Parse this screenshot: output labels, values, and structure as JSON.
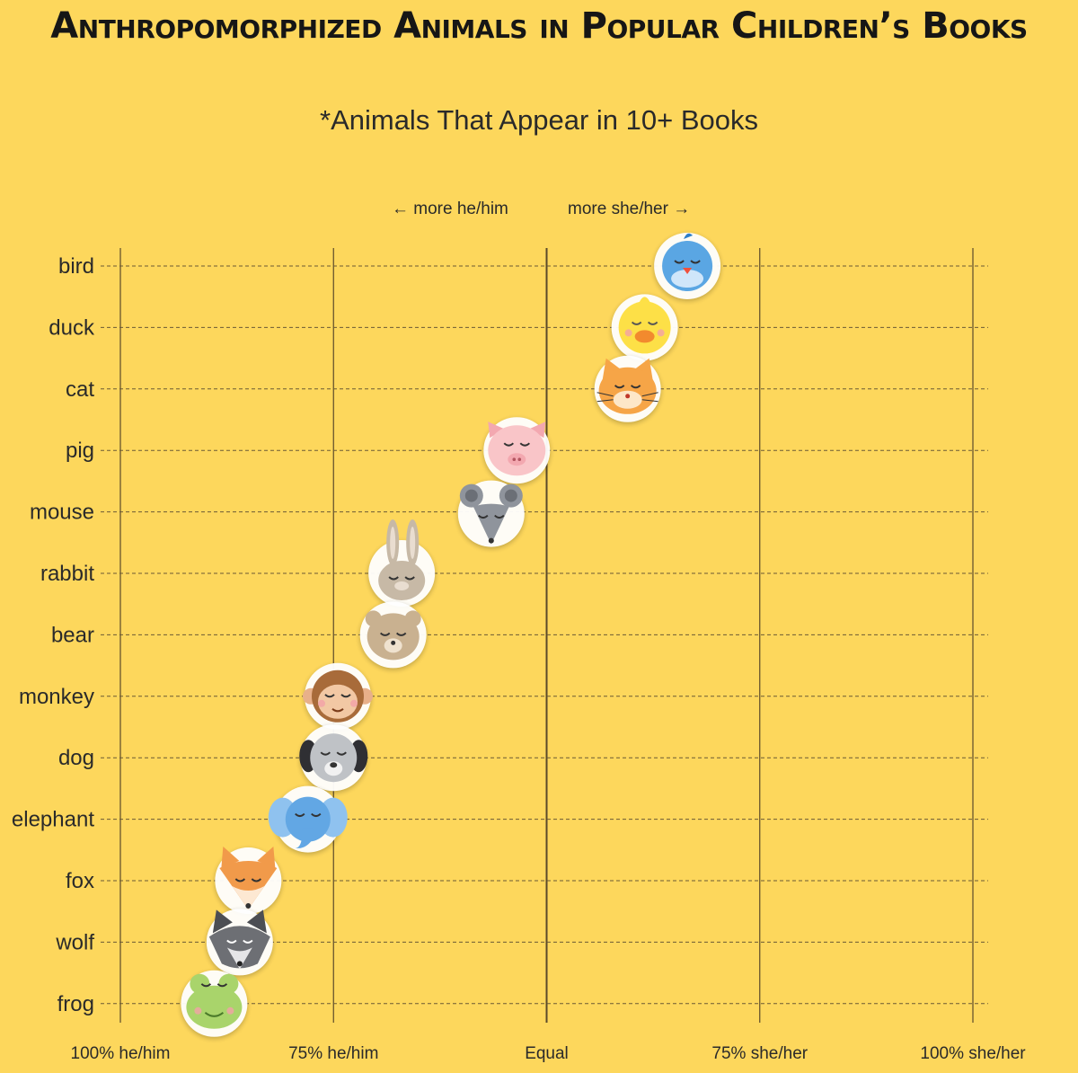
{
  "title": "Anthropomorphized Animals in Popular Children’s Books",
  "subtitle": "*Animals That Appear in 10+ Books",
  "direction_labels": {
    "left": "← more he/him",
    "right": "more she/her →"
  },
  "chart_data": {
    "type": "scatter",
    "title": "Anthropomorphized Animals in Popular Children’s Books",
    "subtitle": "*Animals That Appear in 10+ Books",
    "x_ticks": [
      {
        "value": -100,
        "label": "100% he/him"
      },
      {
        "value": -50,
        "label": "75% he/him"
      },
      {
        "value": 0,
        "label": "Equal"
      },
      {
        "value": 50,
        "label": "75% she/her"
      },
      {
        "value": 100,
        "label": "100% she/her"
      }
    ],
    "xlim": [
      -100,
      100
    ],
    "x_unit": "difference in pronoun share (she/her minus he/him), percentage points",
    "grid": true,
    "points": [
      {
        "animal": "bird",
        "x": 33
      },
      {
        "animal": "duck",
        "x": 23
      },
      {
        "animal": "cat",
        "x": 19
      },
      {
        "animal": "pig",
        "x": -7
      },
      {
        "animal": "mouse",
        "x": -13
      },
      {
        "animal": "rabbit",
        "x": -34
      },
      {
        "animal": "bear",
        "x": -36
      },
      {
        "animal": "monkey",
        "x": -49
      },
      {
        "animal": "dog",
        "x": -50
      },
      {
        "animal": "elephant",
        "x": -56
      },
      {
        "animal": "fox",
        "x": -70
      },
      {
        "animal": "wolf",
        "x": -72
      },
      {
        "animal": "frog",
        "x": -78
      }
    ]
  },
  "icons": {
    "bird": {
      "name": "bird-face-icon",
      "color": "#5aa6e3"
    },
    "duck": {
      "name": "duck-face-icon",
      "color": "#fde047"
    },
    "cat": {
      "name": "cat-face-icon",
      "color": "#f6a547"
    },
    "pig": {
      "name": "pig-face-icon",
      "color": "#f9c5c8"
    },
    "mouse": {
      "name": "mouse-face-icon",
      "color": "#8f949c"
    },
    "rabbit": {
      "name": "rabbit-face-icon",
      "color": "#c7b9a6"
    },
    "bear": {
      "name": "bear-face-icon",
      "color": "#c9b190"
    },
    "monkey": {
      "name": "monkey-face-icon",
      "color": "#a86b3a"
    },
    "dog": {
      "name": "dog-face-icon",
      "color": "#bfc2c6"
    },
    "elephant": {
      "name": "elephant-face-icon",
      "color": "#62a7e4"
    },
    "fox": {
      "name": "fox-face-icon",
      "color": "#f19a4a"
    },
    "wolf": {
      "name": "wolf-face-icon",
      "color": "#6d6f74"
    },
    "frog": {
      "name": "frog-face-icon",
      "color": "#a9d46b"
    }
  }
}
